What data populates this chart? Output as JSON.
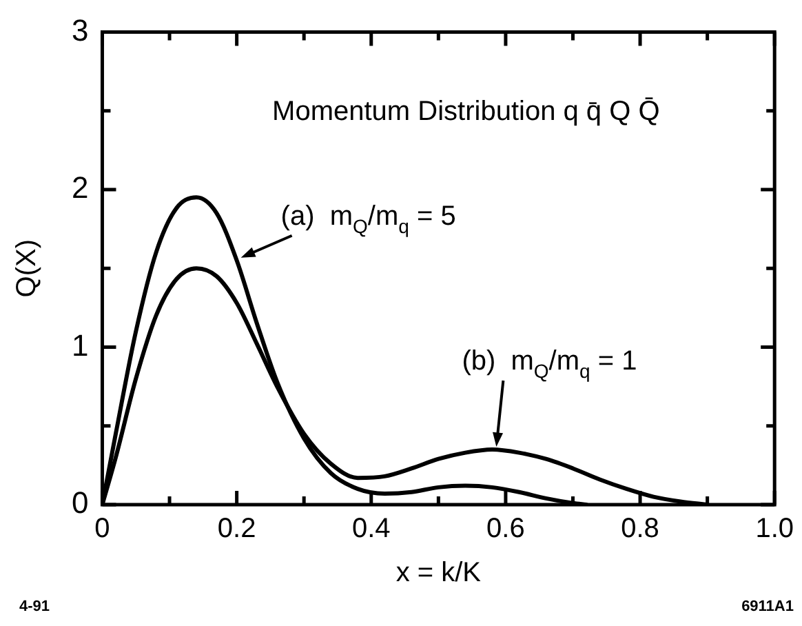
{
  "chart_data": {
    "type": "line",
    "title": "Momentum Distribution q q̄ Q Q̄",
    "xlabel": "x = k/K",
    "ylabel": "Q(X)",
    "series": [
      {
        "name": "(a)  m$_{Q}$/m$_{q}$ = 5",
        "color": "#000000",
        "x": [
          0,
          0.02,
          0.05,
          0.08,
          0.11,
          0.14,
          0.17,
          0.2,
          0.23,
          0.26,
          0.3,
          0.34,
          0.38,
          0.42,
          0.46,
          0.5,
          0.54,
          0.58,
          0.62,
          0.66,
          0.7,
          0.72
        ],
        "values": [
          0,
          0.45,
          1.1,
          1.6,
          1.88,
          1.95,
          1.85,
          1.55,
          1.15,
          0.78,
          0.42,
          0.2,
          0.1,
          0.07,
          0.08,
          0.11,
          0.12,
          0.11,
          0.08,
          0.04,
          0.01,
          0
        ]
      },
      {
        "name": "(b)  m$_{Q}$/m$_{q}$ = 1",
        "color": "#000000",
        "x": [
          0,
          0.02,
          0.05,
          0.08,
          0.11,
          0.14,
          0.17,
          0.2,
          0.23,
          0.26,
          0.3,
          0.34,
          0.38,
          0.42,
          0.46,
          0.5,
          0.54,
          0.58,
          0.62,
          0.66,
          0.7,
          0.74,
          0.78,
          0.82,
          0.86,
          0.9
        ],
        "values": [
          0,
          0.3,
          0.8,
          1.2,
          1.43,
          1.5,
          1.45,
          1.28,
          1.02,
          0.75,
          0.45,
          0.26,
          0.17,
          0.18,
          0.23,
          0.29,
          0.33,
          0.35,
          0.33,
          0.29,
          0.23,
          0.16,
          0.1,
          0.05,
          0.02,
          0
        ]
      }
    ],
    "xlim": [
      0,
      1
    ],
    "ylim": [
      0,
      3
    ],
    "xticks": [
      0,
      {
        "value": 0.1,
        "label": null
      },
      0.2,
      {
        "value": 0.3,
        "label": null
      },
      0.4,
      {
        "value": 0.5,
        "label": null
      },
      0.6,
      {
        "value": 0.7,
        "label": null
      },
      0.8,
      {
        "value": 0.9,
        "label": null
      },
      {
        "value": 1,
        "label": "1.0"
      }
    ],
    "yticks": [
      0,
      {
        "value": 0.5,
        "label": null
      },
      1,
      {
        "value": 1.5,
        "label": null
      },
      2,
      {
        "value": 2.5,
        "label": null
      },
      3
    ],
    "grid": false,
    "legend": false,
    "marker": "none",
    "line_style": "solid",
    "annotations": [
      "4-91",
      "6911A1"
    ]
  }
}
